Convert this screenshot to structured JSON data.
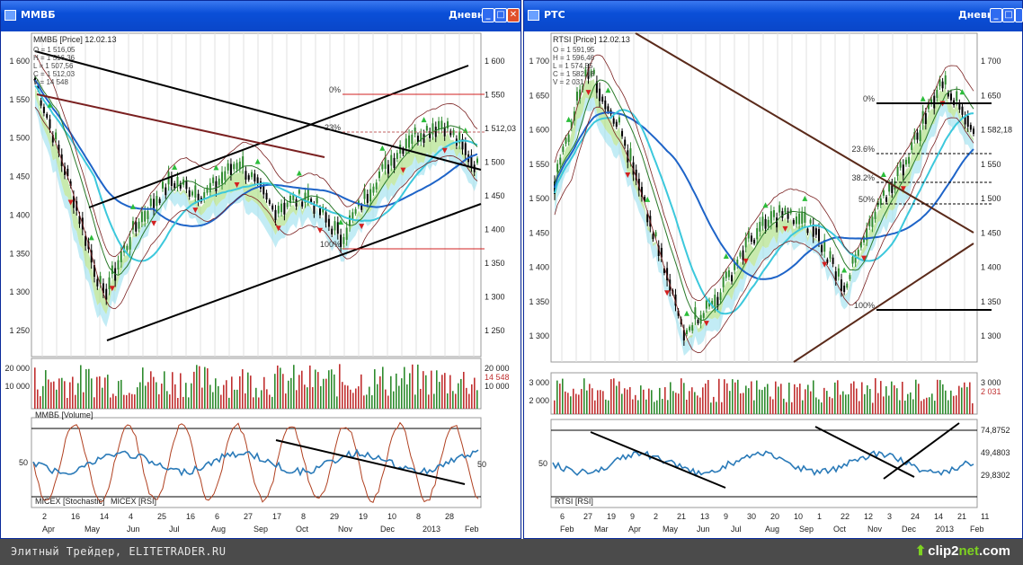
{
  "left": {
    "title": "ММВБ",
    "period": "Дневной",
    "legend_main": "ММВБ [Price] 12.02.13",
    "ohlc": [
      "O = 1 516,05",
      "H = 1 516,36",
      "L = 1 507,56",
      "C = 1 512,03",
      "V = 14 548"
    ],
    "price_ticks": [
      "1 600",
      "1 550",
      "1 500",
      "1 450",
      "1 400",
      "1 350",
      "1 300",
      "1 250"
    ],
    "price_ticks_right": [
      "1 600",
      "1 550",
      "1 512,03",
      "1 500",
      "1 450",
      "1 400",
      "1 350",
      "1 300",
      "1 250"
    ],
    "fib_labels": [
      "0%",
      "23%",
      "100%"
    ],
    "volume_ticks": [
      "20 000",
      "10 000"
    ],
    "volume_ticks_right": [
      "20 000",
      "14 548",
      "10 000"
    ],
    "volume_legend": "ММВБ [Volume]",
    "osc_tick_left": "50",
    "osc_tick_right": "50",
    "osc_legend_1": "MICEX [Stochastic]",
    "osc_legend_2": "MICEX [RSI]",
    "date_top": [
      "2",
      "16",
      "14",
      "4",
      "25",
      "16",
      "6",
      "27",
      "17",
      "8",
      "29",
      "19",
      "10",
      "8",
      "28"
    ],
    "date_bottom": [
      "Apr",
      "May",
      "Jun",
      "Jul",
      "Aug",
      "Sep",
      "Oct",
      "Nov",
      "Dec",
      "2013",
      "Feb"
    ]
  },
  "right": {
    "title": "РТС",
    "period": "Дневной",
    "legend_main": "RTSI [Price] 12.02.13",
    "ohlc": [
      "O = 1 591,95",
      "H = 1 596,46",
      "L = 1 574,55",
      "C = 1 582,18",
      "V = 2 031"
    ],
    "price_ticks": [
      "1 700",
      "1 650",
      "1 600",
      "1 550",
      "1 500",
      "1 450",
      "1 400",
      "1 350",
      "1 300"
    ],
    "price_ticks_right": [
      "1 700",
      "1 650",
      "1 582,18",
      "1 550",
      "1 500",
      "1 450",
      "1 400",
      "1 350",
      "1 300"
    ],
    "fib_labels": [
      "0%",
      "23.6%",
      "38.2%",
      "50%",
      "100%"
    ],
    "volume_ticks": [
      "3 000",
      "2 000"
    ],
    "volume_ticks_right": [
      "3 000",
      "2 031"
    ],
    "osc_tick_left": "50",
    "osc_ticks_right": [
      "74,8752",
      "49,4803",
      "29,8302"
    ],
    "osc_legend": "RTSI [RSI]",
    "date_top": [
      "6",
      "27",
      "19",
      "9",
      "2",
      "21",
      "13",
      "9",
      "30",
      "20",
      "10",
      "1",
      "22",
      "12",
      "3",
      "24",
      "14",
      "21",
      "11"
    ],
    "date_bottom": [
      "Feb",
      "Mar",
      "Apr",
      "May",
      "Jun",
      "Jul",
      "Aug",
      "Sep",
      "Oct",
      "Nov",
      "Dec",
      "2013",
      "Feb"
    ]
  },
  "footer": {
    "credit": "Элитный Трейдер, ELITETRADER.RU",
    "logo_main": "clip2",
    "logo_net": "net",
    "logo_tail": ".com"
  },
  "colors": {
    "title_bar": "#0a4fd8",
    "candle_up": "#2e8b2e",
    "candle_down": "#000000",
    "marker_up": "#2bbd3a",
    "marker_down": "#d42020",
    "ma_blue": "#1e64c8",
    "ma_cyan": "#3cc8dc",
    "cloud_green": "#9bd86a",
    "cloud_cyan": "#8fdcec",
    "volume_up": "#2e8b2e",
    "volume_down": "#c03030",
    "fib_line": "#d02020",
    "trend_line": "#000000"
  }
}
